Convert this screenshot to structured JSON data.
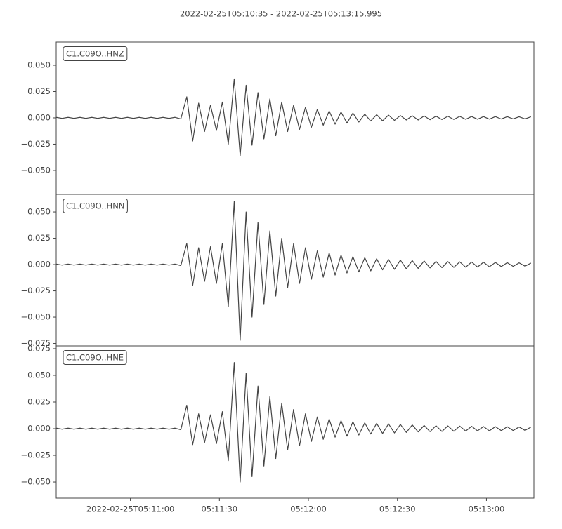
{
  "chart_data": {
    "type": "line",
    "subplots": true,
    "title": "2022-02-25T05:10:35  -  2022-02-25T05:13:15.995",
    "xlim": [
      "2022-02-25T05:10:35",
      "2022-02-25T05:13:15.995"
    ],
    "xticks": [
      {
        "value": "2022-02-25T05:11:00",
        "label": "2022-02-25T05:11:00"
      },
      {
        "value": "2022-02-25T05:11:30",
        "label": "05:11:30"
      },
      {
        "value": "2022-02-25T05:12:00",
        "label": "05:12:00"
      },
      {
        "value": "2022-02-25T05:12:30",
        "label": "05:12:30"
      },
      {
        "value": "2022-02-25T05:13:00",
        "label": "05:13:00"
      }
    ],
    "x": [
      "2022-02-25T05:10:35",
      "2022-02-25T05:10:37",
      "2022-02-25T05:10:39",
      "2022-02-25T05:10:41",
      "2022-02-25T05:10:43",
      "2022-02-25T05:10:45",
      "2022-02-25T05:10:47",
      "2022-02-25T05:10:49",
      "2022-02-25T05:10:51",
      "2022-02-25T05:10:53",
      "2022-02-25T05:10:55",
      "2022-02-25T05:10:57",
      "2022-02-25T05:10:59",
      "2022-02-25T05:11:01",
      "2022-02-25T05:11:03",
      "2022-02-25T05:11:05",
      "2022-02-25T05:11:07",
      "2022-02-25T05:11:09",
      "2022-02-25T05:11:11",
      "2022-02-25T05:11:13",
      "2022-02-25T05:11:15",
      "2022-02-25T05:11:17",
      "2022-02-25T05:11:19",
      "2022-02-25T05:11:21",
      "2022-02-25T05:11:23",
      "2022-02-25T05:11:25",
      "2022-02-25T05:11:27",
      "2022-02-25T05:11:29",
      "2022-02-25T05:11:31",
      "2022-02-25T05:11:33",
      "2022-02-25T05:11:35",
      "2022-02-25T05:11:37",
      "2022-02-25T05:11:39",
      "2022-02-25T05:11:41",
      "2022-02-25T05:11:43",
      "2022-02-25T05:11:45",
      "2022-02-25T05:11:47",
      "2022-02-25T05:11:49",
      "2022-02-25T05:11:51",
      "2022-02-25T05:11:53",
      "2022-02-25T05:11:55",
      "2022-02-25T05:11:57",
      "2022-02-25T05:11:59",
      "2022-02-25T05:12:01",
      "2022-02-25T05:12:03",
      "2022-02-25T05:12:05",
      "2022-02-25T05:12:07",
      "2022-02-25T05:12:09",
      "2022-02-25T05:12:11",
      "2022-02-25T05:12:13",
      "2022-02-25T05:12:15",
      "2022-02-25T05:12:17",
      "2022-02-25T05:12:19",
      "2022-02-25T05:12:21",
      "2022-02-25T05:12:23",
      "2022-02-25T05:12:25",
      "2022-02-25T05:12:27",
      "2022-02-25T05:12:29",
      "2022-02-25T05:12:31",
      "2022-02-25T05:12:33",
      "2022-02-25T05:12:35",
      "2022-02-25T05:12:37",
      "2022-02-25T05:12:39",
      "2022-02-25T05:12:41",
      "2022-02-25T05:12:43",
      "2022-02-25T05:12:45",
      "2022-02-25T05:12:47",
      "2022-02-25T05:12:49",
      "2022-02-25T05:12:51",
      "2022-02-25T05:12:53",
      "2022-02-25T05:12:55",
      "2022-02-25T05:12:57",
      "2022-02-25T05:12:59",
      "2022-02-25T05:13:01",
      "2022-02-25T05:13:03",
      "2022-02-25T05:13:05",
      "2022-02-25T05:13:07",
      "2022-02-25T05:13:09",
      "2022-02-25T05:13:11",
      "2022-02-25T05:13:13",
      "2022-02-25T05:13:15"
    ],
    "series": [
      {
        "name": "C1.C09O..HNZ",
        "color": "#444444",
        "ylim": [
          -0.0727,
          0.072
        ],
        "yticks": [
          {
            "value": -0.05,
            "label": "−0.050"
          },
          {
            "value": -0.025,
            "label": "−0.025"
          },
          {
            "value": 0,
            "label": "0.000"
          },
          {
            "value": 0.025,
            "label": "0.025"
          },
          {
            "value": 0.05,
            "label": "0.050"
          }
        ],
        "values": [
          0.0005,
          -0.0005,
          0.0005,
          -0.0005,
          0.0005,
          -0.0005,
          0.0005,
          -0.0005,
          0.0005,
          -0.0005,
          0.0005,
          -0.0005,
          0.0005,
          -0.0005,
          0.0005,
          -0.0005,
          0.0005,
          -0.0005,
          0.0005,
          -0.0005,
          0.0005,
          -0.001,
          0.02,
          -0.022,
          0.014,
          -0.013,
          0.012,
          -0.012,
          0.015,
          -0.025,
          0.037,
          -0.036,
          0.031,
          -0.026,
          0.024,
          -0.02,
          0.018,
          -0.017,
          0.015,
          -0.013,
          0.012,
          -0.011,
          0.01,
          -0.009,
          0.008,
          -0.007,
          0.0065,
          -0.006,
          0.0055,
          -0.005,
          0.0045,
          -0.004,
          0.0035,
          -0.003,
          0.003,
          -0.0028,
          0.0026,
          -0.0024,
          0.0022,
          -0.002,
          0.002,
          -0.002,
          0.0018,
          -0.0018,
          0.0016,
          -0.0016,
          0.0015,
          -0.0015,
          0.0014,
          -0.0014,
          0.0013,
          -0.0013,
          0.0012,
          -0.0012,
          0.0012,
          -0.0011,
          0.0011,
          -0.001,
          0.001,
          -0.001,
          0.001
        ]
      },
      {
        "name": "C1.C09O..HNN",
        "color": "#444444",
        "ylim": [
          -0.0773,
          0.0667
        ],
        "yticks": [
          {
            "value": -0.075,
            "label": "−0.075"
          },
          {
            "value": -0.05,
            "label": "−0.050"
          },
          {
            "value": -0.025,
            "label": "−0.025"
          },
          {
            "value": 0,
            "label": "0.000"
          },
          {
            "value": 0.025,
            "label": "0.025"
          },
          {
            "value": 0.05,
            "label": "0.050"
          }
        ],
        "values": [
          0.0005,
          -0.0005,
          0.0005,
          -0.0005,
          0.0005,
          -0.0005,
          0.0005,
          -0.0005,
          0.0005,
          -0.0005,
          0.0005,
          -0.0005,
          0.0005,
          -0.0005,
          0.0005,
          -0.0005,
          0.0005,
          -0.0005,
          0.0005,
          -0.0005,
          0.0005,
          -0.001,
          0.02,
          -0.02,
          0.016,
          -0.016,
          0.017,
          -0.018,
          0.02,
          -0.04,
          0.06,
          -0.072,
          0.05,
          -0.05,
          0.04,
          -0.038,
          0.032,
          -0.03,
          0.025,
          -0.022,
          0.02,
          -0.018,
          0.016,
          -0.014,
          0.013,
          -0.012,
          0.011,
          -0.01,
          0.009,
          -0.008,
          0.0075,
          -0.007,
          0.0065,
          -0.006,
          0.0055,
          -0.005,
          0.0048,
          -0.0045,
          0.0042,
          -0.004,
          0.0038,
          -0.0036,
          0.0034,
          -0.0032,
          0.003,
          -0.0029,
          0.0028,
          -0.0027,
          0.0026,
          -0.0025,
          0.0024,
          -0.0023,
          0.0022,
          -0.0021,
          0.002,
          -0.0019,
          0.0018,
          -0.0017,
          0.0016,
          -0.0015,
          0.0014
        ]
      },
      {
        "name": "C1.C09O..HNE",
        "color": "#444444",
        "ylim": [
          -0.0651,
          0.0776
        ],
        "yticks": [
          {
            "value": -0.05,
            "label": "−0.050"
          },
          {
            "value": -0.025,
            "label": "−0.025"
          },
          {
            "value": 0,
            "label": "0.000"
          },
          {
            "value": 0.025,
            "label": "0.025"
          },
          {
            "value": 0.05,
            "label": "0.050"
          },
          {
            "value": 0.075,
            "label": "0.075"
          }
        ],
        "values": [
          0.0005,
          -0.0005,
          0.0005,
          -0.0005,
          0.0005,
          -0.0005,
          0.0005,
          -0.0005,
          0.0005,
          -0.0005,
          0.0005,
          -0.0005,
          0.0005,
          -0.0005,
          0.0005,
          -0.0005,
          0.0005,
          -0.0005,
          0.0005,
          -0.0005,
          0.0005,
          -0.001,
          0.022,
          -0.015,
          0.014,
          -0.013,
          0.013,
          -0.014,
          0.016,
          -0.03,
          0.062,
          -0.05,
          0.052,
          -0.045,
          0.04,
          -0.035,
          0.03,
          -0.028,
          0.024,
          -0.02,
          0.018,
          -0.016,
          0.014,
          -0.012,
          0.011,
          -0.01,
          0.009,
          -0.008,
          0.0075,
          -0.007,
          0.0065,
          -0.006,
          0.0055,
          -0.005,
          0.005,
          -0.0045,
          0.0045,
          -0.004,
          0.004,
          -0.0035,
          0.0035,
          -0.003,
          0.003,
          -0.0028,
          0.0028,
          -0.0026,
          0.0026,
          -0.0024,
          0.0024,
          -0.0022,
          0.0022,
          -0.002,
          0.002,
          -0.002,
          0.0019,
          -0.0018,
          0.0018,
          -0.0017,
          0.0016,
          -0.0016,
          0.0015
        ]
      }
    ]
  }
}
